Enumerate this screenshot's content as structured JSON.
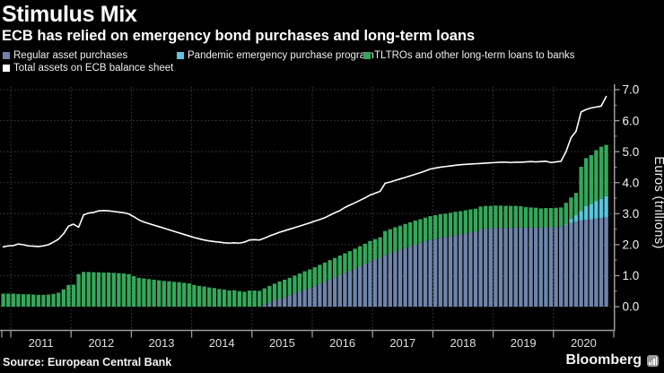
{
  "header": {
    "title": "Stimulus Mix",
    "subtitle": "ECB has relied on emergency bond purchases and long-term loans"
  },
  "legend": {
    "items": [
      {
        "label": "Regular asset purchases",
        "color": "#6e84aa"
      },
      {
        "label": "Pandemic emergency purchase program",
        "color": "#5bc6de"
      },
      {
        "label": "TLTROs and other long-term loans to banks",
        "color": "#35a75a"
      },
      {
        "label": "Total assets on ECB balance sheet",
        "color": "#ffffff"
      }
    ]
  },
  "chart_data": {
    "type": "bar",
    "subtype": "stacked-monthly-bars-with-line-overlay",
    "title": "Stimulus Mix",
    "frequency": "monthly",
    "x_start": "2010-11",
    "x_end": "2020-11",
    "xlabel": "",
    "ylabel": "Euros (trillions)",
    "ylim": [
      0,
      7
    ],
    "y_ticks": [
      "0.0",
      "1.0",
      "2.0",
      "3.0",
      "4.0",
      "5.0",
      "6.0",
      "7.0"
    ],
    "x_year_labels": [
      "2011",
      "2012",
      "2013",
      "2014",
      "2015",
      "2016",
      "2017",
      "2018",
      "2019",
      "2020"
    ],
    "grid": "dotted",
    "legend_position": "top",
    "series": [
      {
        "name": "Regular asset purchases",
        "role": "bar",
        "stack_index": 0,
        "color": "#6e84aa",
        "values": [
          0,
          0,
          0,
          0,
          0,
          0,
          0,
          0,
          0,
          0,
          0,
          0,
          0,
          0,
          0,
          0,
          0,
          0,
          0,
          0,
          0,
          0,
          0,
          0,
          0,
          0,
          0,
          0,
          0,
          0,
          0,
          0,
          0,
          0,
          0,
          0,
          0,
          0,
          0,
          0,
          0,
          0,
          0,
          0,
          0,
          0,
          0,
          0,
          0,
          0,
          0,
          0,
          0.08,
          0.14,
          0.2,
          0.26,
          0.31,
          0.37,
          0.43,
          0.49,
          0.55,
          0.6,
          0.67,
          0.74,
          0.81,
          0.88,
          0.95,
          1.02,
          1.09,
          1.16,
          1.23,
          1.31,
          1.39,
          1.47,
          1.53,
          1.59,
          1.66,
          1.72,
          1.78,
          1.84,
          1.9,
          1.95,
          2.01,
          2.06,
          2.11,
          2.16,
          2.19,
          2.22,
          2.25,
          2.28,
          2.31,
          2.34,
          2.37,
          2.4,
          2.43,
          2.5,
          2.52,
          2.53,
          2.54,
          2.54,
          2.54,
          2.54,
          2.55,
          2.55,
          2.55,
          2.55,
          2.55,
          2.55,
          2.56,
          2.56,
          2.57,
          2.58,
          2.64,
          2.7,
          2.74,
          2.78,
          2.8,
          2.82,
          2.84,
          2.86,
          2.88
        ]
      },
      {
        "name": "Pandemic emergency purchase program",
        "role": "bar",
        "stack_index": 1,
        "color": "#5bc6de",
        "values": [
          0,
          0,
          0,
          0,
          0,
          0,
          0,
          0,
          0,
          0,
          0,
          0,
          0,
          0,
          0,
          0,
          0,
          0,
          0,
          0,
          0,
          0,
          0,
          0,
          0,
          0,
          0,
          0,
          0,
          0,
          0,
          0,
          0,
          0,
          0,
          0,
          0,
          0,
          0,
          0,
          0,
          0,
          0,
          0,
          0,
          0,
          0,
          0,
          0,
          0,
          0,
          0,
          0,
          0,
          0,
          0,
          0,
          0,
          0,
          0,
          0,
          0,
          0,
          0,
          0,
          0,
          0,
          0,
          0,
          0,
          0,
          0,
          0,
          0,
          0,
          0,
          0,
          0,
          0,
          0,
          0,
          0,
          0,
          0,
          0,
          0,
          0,
          0,
          0,
          0,
          0,
          0,
          0,
          0,
          0,
          0,
          0,
          0,
          0,
          0,
          0,
          0,
          0,
          0,
          0,
          0,
          0,
          0,
          0,
          0,
          0,
          0,
          0.03,
          0.12,
          0.21,
          0.31,
          0.44,
          0.5,
          0.57,
          0.62,
          0.68
        ]
      },
      {
        "name": "TLTROs and other long-term loans to banks",
        "role": "bar",
        "stack_index": 2,
        "color": "#35a75a",
        "values": [
          0.42,
          0.42,
          0.42,
          0.41,
          0.4,
          0.4,
          0.39,
          0.38,
          0.38,
          0.39,
          0.41,
          0.45,
          0.56,
          0.7,
          0.71,
          1.05,
          1.12,
          1.12,
          1.11,
          1.11,
          1.1,
          1.1,
          1.09,
          1.08,
          1.07,
          1.05,
          0.98,
          0.93,
          0.91,
          0.89,
          0.87,
          0.85,
          0.83,
          0.82,
          0.8,
          0.79,
          0.77,
          0.75,
          0.7,
          0.67,
          0.65,
          0.62,
          0.6,
          0.57,
          0.55,
          0.52,
          0.53,
          0.5,
          0.48,
          0.52,
          0.52,
          0.51,
          0.51,
          0.53,
          0.54,
          0.55,
          0.56,
          0.56,
          0.57,
          0.58,
          0.59,
          0.6,
          0.6,
          0.61,
          0.61,
          0.62,
          0.62,
          0.63,
          0.63,
          0.63,
          0.64,
          0.64,
          0.64,
          0.65,
          0.65,
          0.65,
          0.78,
          0.78,
          0.78,
          0.77,
          0.77,
          0.77,
          0.77,
          0.76,
          0.76,
          0.76,
          0.76,
          0.76,
          0.75,
          0.75,
          0.75,
          0.74,
          0.74,
          0.74,
          0.73,
          0.73,
          0.73,
          0.72,
          0.72,
          0.72,
          0.71,
          0.71,
          0.7,
          0.69,
          0.66,
          0.65,
          0.64,
          0.62,
          0.62,
          0.62,
          0.62,
          0.62,
          0.68,
          0.7,
          0.72,
          1.42,
          1.55,
          1.57,
          1.64,
          1.68,
          1.66
        ]
      },
      {
        "name": "Total assets on ECB balance sheet",
        "role": "line",
        "color": "#ffffff",
        "values": [
          1.93,
          1.96,
          1.97,
          2.02,
          2.0,
          1.96,
          1.95,
          1.94,
          1.96,
          2.0,
          2.08,
          2.18,
          2.35,
          2.6,
          2.66,
          2.56,
          2.96,
          3.02,
          3.04,
          3.09,
          3.1,
          3.09,
          3.07,
          3.05,
          3.03,
          2.99,
          2.9,
          2.8,
          2.73,
          2.68,
          2.63,
          2.58,
          2.53,
          2.48,
          2.43,
          2.38,
          2.33,
          2.28,
          2.23,
          2.19,
          2.15,
          2.12,
          2.1,
          2.08,
          2.06,
          2.05,
          2.06,
          2.05,
          2.08,
          2.15,
          2.16,
          2.15,
          2.21,
          2.28,
          2.34,
          2.4,
          2.45,
          2.5,
          2.55,
          2.6,
          2.65,
          2.7,
          2.76,
          2.81,
          2.87,
          2.95,
          3.03,
          3.1,
          3.2,
          3.28,
          3.35,
          3.43,
          3.51,
          3.6,
          3.66,
          3.72,
          3.98,
          4.02,
          4.07,
          4.12,
          4.17,
          4.22,
          4.27,
          4.32,
          4.38,
          4.44,
          4.47,
          4.5,
          4.52,
          4.54,
          4.56,
          4.58,
          4.59,
          4.6,
          4.61,
          4.62,
          4.63,
          4.64,
          4.65,
          4.66,
          4.66,
          4.65,
          4.66,
          4.66,
          4.67,
          4.68,
          4.67,
          4.68,
          4.69,
          4.65,
          4.67,
          4.69,
          5.0,
          5.45,
          5.66,
          6.28,
          6.36,
          6.41,
          6.44,
          6.47,
          6.78
        ]
      }
    ]
  },
  "footer": {
    "source": "Source: European Central Bank",
    "brand": "Bloomberg"
  }
}
